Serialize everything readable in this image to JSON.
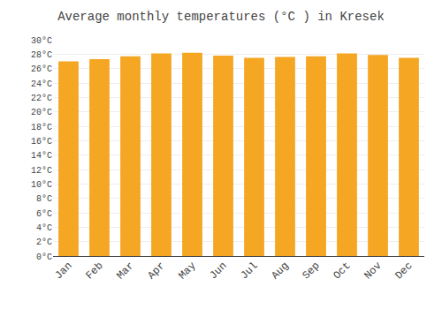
{
  "chart_data": {
    "type": "bar",
    "title": "Average monthly temperatures (°C ) in Kresek",
    "categories": [
      "Jan",
      "Feb",
      "Mar",
      "Apr",
      "May",
      "Jun",
      "Jul",
      "Aug",
      "Sep",
      "Oct",
      "Nov",
      "Dec"
    ],
    "values": [
      27.0,
      27.3,
      27.7,
      28.1,
      28.2,
      27.8,
      27.5,
      27.6,
      27.7,
      28.1,
      27.9,
      27.5
    ],
    "color": "#F5A623",
    "ylim": [
      0,
      30
    ],
    "yticks": [
      {
        "value": 0,
        "label": "0°C"
      },
      {
        "value": 2,
        "label": "2°C"
      },
      {
        "value": 4,
        "label": "4°C"
      },
      {
        "value": 6,
        "label": "6°C"
      },
      {
        "value": 8,
        "label": "8°C"
      },
      {
        "value": 10,
        "label": "10°C"
      },
      {
        "value": 12,
        "label": "12°C"
      },
      {
        "value": 14,
        "label": "14°C"
      },
      {
        "value": 16,
        "label": "16°C"
      },
      {
        "value": 18,
        "label": "18°C"
      },
      {
        "value": 20,
        "label": "20°C"
      },
      {
        "value": 22,
        "label": "22°C"
      },
      {
        "value": 24,
        "label": "24°C"
      },
      {
        "value": 26,
        "label": "26°C"
      },
      {
        "value": 28,
        "label": "28°C"
      },
      {
        "value": 30,
        "label": "30°C"
      }
    ],
    "grid": true
  }
}
